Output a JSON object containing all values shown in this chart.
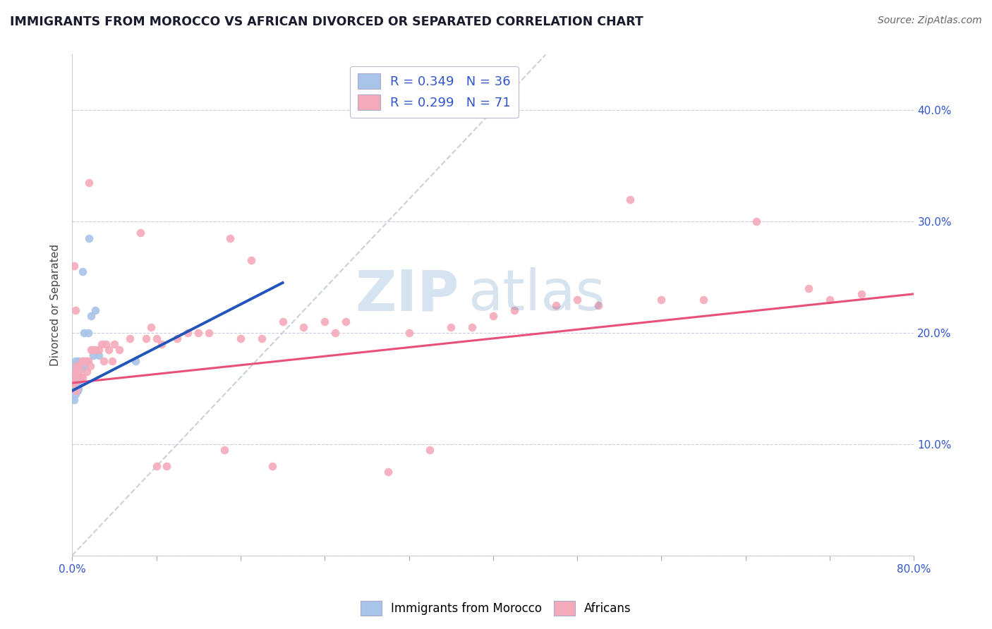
{
  "title": "IMMIGRANTS FROM MOROCCO VS AFRICAN DIVORCED OR SEPARATED CORRELATION CHART",
  "source": "Source: ZipAtlas.com",
  "ylabel": "Divorced or Separated",
  "xmin": 0.0,
  "xmax": 0.8,
  "ymin": 0.0,
  "ymax": 0.45,
  "legend_r1": "R = 0.349   N = 36",
  "legend_r2": "R = 0.299   N = 71",
  "legend_label1": "Immigrants from Morocco",
  "legend_label2": "Africans",
  "blue_color": "#a8c4e8",
  "pink_color": "#f5aaba",
  "blue_line_color": "#2255bb",
  "pink_line_color": "#e8507a",
  "legend_text_color": "#3355cc",
  "watermark_zip": "ZIP",
  "watermark_atlas": "atlas",
  "blue_points_x": [
    0.001,
    0.001,
    0.001,
    0.002,
    0.002,
    0.002,
    0.002,
    0.002,
    0.003,
    0.003,
    0.003,
    0.003,
    0.003,
    0.004,
    0.004,
    0.004,
    0.005,
    0.005,
    0.006,
    0.006,
    0.006,
    0.007,
    0.008,
    0.009,
    0.01,
    0.01,
    0.011,
    0.012,
    0.013,
    0.015,
    0.016,
    0.018,
    0.02,
    0.022,
    0.025,
    0.06
  ],
  "blue_points_y": [
    0.155,
    0.155,
    0.16,
    0.14,
    0.15,
    0.155,
    0.16,
    0.17,
    0.145,
    0.15,
    0.155,
    0.16,
    0.175,
    0.15,
    0.155,
    0.165,
    0.148,
    0.158,
    0.15,
    0.155,
    0.175,
    0.155,
    0.16,
    0.168,
    0.175,
    0.255,
    0.2,
    0.17,
    0.175,
    0.2,
    0.285,
    0.215,
    0.18,
    0.22,
    0.18,
    0.175
  ],
  "pink_points_x": [
    0.001,
    0.002,
    0.002,
    0.002,
    0.003,
    0.003,
    0.004,
    0.004,
    0.005,
    0.006,
    0.007,
    0.008,
    0.009,
    0.01,
    0.011,
    0.013,
    0.014,
    0.015,
    0.016,
    0.017,
    0.018,
    0.02,
    0.022,
    0.025,
    0.028,
    0.03,
    0.032,
    0.035,
    0.038,
    0.04,
    0.045,
    0.055,
    0.065,
    0.07,
    0.075,
    0.08,
    0.085,
    0.09,
    0.1,
    0.11,
    0.13,
    0.15,
    0.16,
    0.17,
    0.18,
    0.2,
    0.22,
    0.24,
    0.26,
    0.3,
    0.32,
    0.34,
    0.36,
    0.38,
    0.42,
    0.46,
    0.48,
    0.5,
    0.53,
    0.56,
    0.6,
    0.65,
    0.7,
    0.72,
    0.75,
    0.08,
    0.12,
    0.145,
    0.19,
    0.25,
    0.4
  ],
  "pink_points_y": [
    0.155,
    0.155,
    0.16,
    0.26,
    0.165,
    0.22,
    0.148,
    0.17,
    0.165,
    0.165,
    0.17,
    0.16,
    0.175,
    0.16,
    0.175,
    0.175,
    0.165,
    0.175,
    0.335,
    0.17,
    0.185,
    0.185,
    0.185,
    0.185,
    0.19,
    0.175,
    0.19,
    0.185,
    0.175,
    0.19,
    0.185,
    0.195,
    0.29,
    0.195,
    0.205,
    0.08,
    0.19,
    0.08,
    0.195,
    0.2,
    0.2,
    0.285,
    0.195,
    0.265,
    0.195,
    0.21,
    0.205,
    0.21,
    0.21,
    0.075,
    0.2,
    0.095,
    0.205,
    0.205,
    0.22,
    0.225,
    0.23,
    0.225,
    0.32,
    0.23,
    0.23,
    0.3,
    0.24,
    0.23,
    0.235,
    0.195,
    0.2,
    0.095,
    0.08,
    0.2,
    0.215
  ],
  "blue_trend_x": [
    0.0,
    0.2
  ],
  "blue_trend_y": [
    0.148,
    0.245
  ],
  "pink_trend_x": [
    0.0,
    0.8
  ],
  "pink_trend_y": [
    0.155,
    0.235
  ],
  "ref_line_x": [
    0.0,
    0.45
  ],
  "ref_line_y": [
    0.0,
    0.45
  ],
  "yticks": [
    0.0,
    0.1,
    0.2,
    0.3,
    0.4
  ],
  "xtick_positions": [
    0.0,
    0.08,
    0.16,
    0.24,
    0.32,
    0.4,
    0.48,
    0.56,
    0.64,
    0.72,
    0.8
  ]
}
